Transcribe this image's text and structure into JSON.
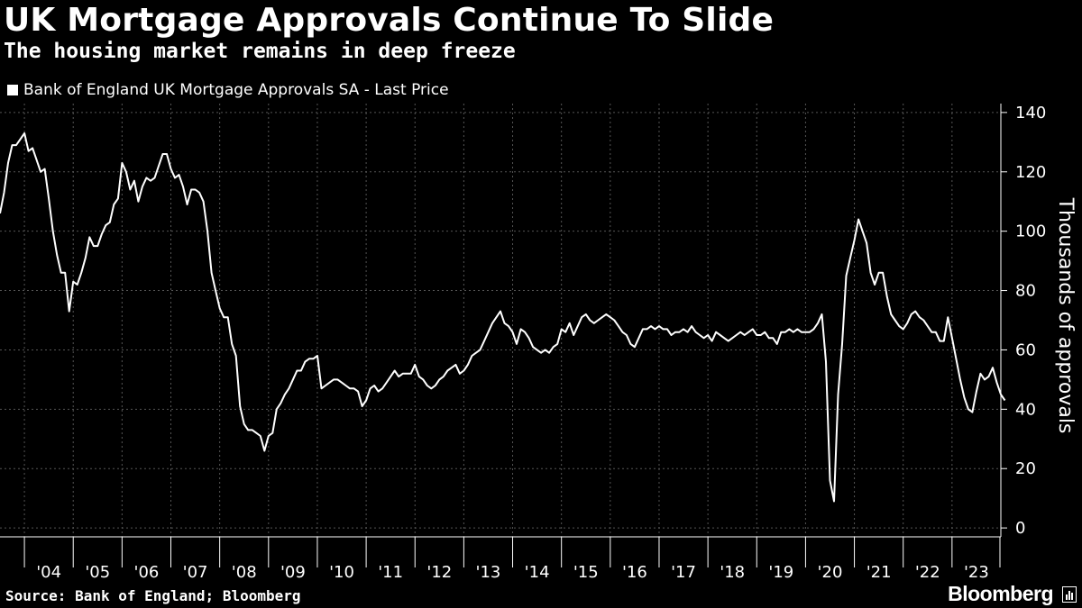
{
  "chart_data": {
    "type": "line",
    "title": "UK Mortgage Approvals Continue To Slide",
    "subtitle": "The housing market remains in deep freeze",
    "legend": [
      "Bank of England UK Mortgage Approvals SA - Last Price"
    ],
    "ylabel": "Thousands of approvals",
    "xlabel": "",
    "source": "Source: Bank of England; Bloomberg",
    "brand": "Bloomberg",
    "line_color": "#ffffff",
    "grid_color": "#555555",
    "background": "#000000",
    "ylim": [
      -3,
      143
    ],
    "xlim": [
      2003.5,
      2024.0
    ],
    "yticks": [
      0,
      20,
      40,
      60,
      80,
      100,
      120,
      140
    ],
    "xtick_labels": [
      "'04",
      "'05",
      "'06",
      "'07",
      "'08",
      "'09",
      "'10",
      "'11",
      "'12",
      "'13",
      "'14",
      "'15",
      "'16",
      "'17",
      "'18",
      "'19",
      "'20",
      "'21",
      "'22",
      "'23"
    ],
    "xtick_years": [
      2004,
      2005,
      2006,
      2007,
      2008,
      2009,
      2010,
      2011,
      2012,
      2013,
      2014,
      2015,
      2016,
      2017,
      2018,
      2019,
      2020,
      2021,
      2022,
      2023
    ],
    "series": [
      {
        "name": "Bank of England UK Mortgage Approvals SA - Last Price",
        "start_year": 2003.5,
        "step_months": 1,
        "values": [
          106,
          113,
          123,
          129,
          129,
          131,
          133,
          127,
          128,
          124,
          120,
          121,
          111,
          100,
          92,
          86,
          86,
          73,
          83,
          82,
          86,
          91,
          98,
          95,
          95,
          99,
          102,
          103,
          109,
          111,
          123,
          120,
          114,
          117,
          110,
          115,
          118,
          117,
          118,
          122,
          126,
          126,
          121,
          118,
          119,
          115,
          109,
          114,
          114,
          113,
          110,
          100,
          86,
          80,
          74,
          71,
          71,
          62,
          58,
          41,
          35,
          33,
          33,
          32,
          31,
          26,
          31,
          32,
          40,
          42,
          45,
          47,
          50,
          53,
          53,
          56,
          57,
          57,
          58,
          47,
          48,
          49,
          50,
          50,
          49,
          48,
          47,
          47,
          46,
          41,
          43,
          47,
          48,
          46,
          47,
          49,
          51,
          53,
          51,
          52,
          52,
          52,
          55,
          51,
          50,
          48,
          47,
          48,
          50,
          51,
          53,
          54,
          55,
          52,
          53,
          55,
          58,
          59,
          60,
          63,
          66,
          69,
          71,
          73,
          69,
          68,
          66,
          62,
          67,
          66,
          64,
          61,
          60,
          59,
          60,
          59,
          61,
          62,
          67,
          66,
          69,
          65,
          68,
          71,
          72,
          70,
          69,
          70,
          71,
          72,
          71,
          70,
          68,
          66,
          65,
          62,
          61,
          64,
          67,
          67,
          68,
          67,
          68,
          67,
          67,
          65,
          66,
          66,
          67,
          66,
          68,
          66,
          65,
          64,
          65,
          63,
          66,
          65,
          64,
          63,
          64,
          65,
          66,
          65,
          66,
          67,
          65,
          65,
          66,
          64,
          64,
          62,
          66,
          66,
          67,
          66,
          67,
          66,
          66,
          66,
          67,
          69,
          72,
          56,
          16,
          9,
          45,
          62,
          85,
          91,
          97,
          104,
          100,
          96,
          86,
          82,
          86,
          86,
          78,
          72,
          70,
          68,
          67,
          69,
          72,
          73,
          71,
          70,
          68,
          66,
          66,
          63,
          63,
          71,
          64,
          57,
          50,
          44,
          40,
          39,
          46,
          52,
          50,
          51,
          54,
          49,
          45,
          43
        ]
      }
    ]
  }
}
